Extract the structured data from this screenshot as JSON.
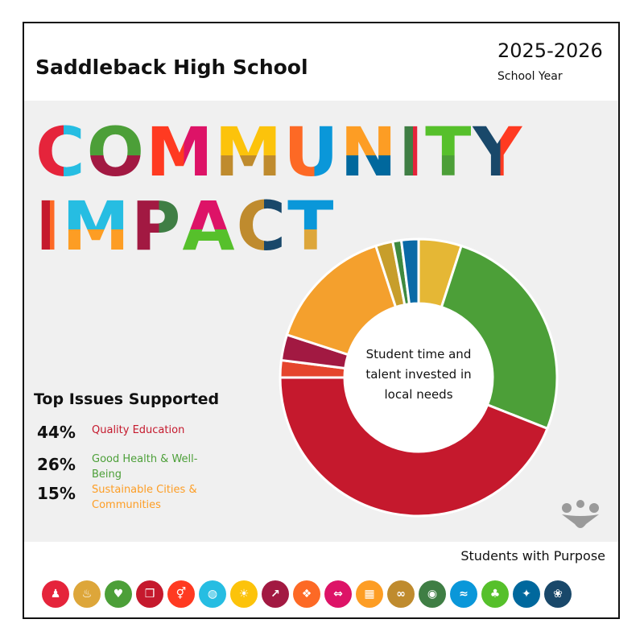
{
  "header": {
    "school_name": "Saddleback High School",
    "year": "2025-2026",
    "year_label": "School Year"
  },
  "title": {
    "line1": "COMMUNITY",
    "line2": "IMPACT"
  },
  "top_issues": {
    "heading": "Top Issues Supported",
    "items": [
      {
        "percent": "44%",
        "name": "Quality Education",
        "color": "#c5192d"
      },
      {
        "percent": "26%",
        "name": "Good Health & Well-Being",
        "color": "#4c9f38"
      },
      {
        "percent": "15%",
        "name": "Sustainable Cities & Communities",
        "color": "#fd9d24"
      }
    ]
  },
  "footer": {
    "tagline": "Students with Purpose"
  },
  "chart_data": {
    "type": "pie",
    "center_label": "Student time and talent invested in local needs",
    "slices": [
      {
        "value": 5,
        "color": "#e5b735"
      },
      {
        "value": 26,
        "color": "#4c9f38"
      },
      {
        "value": 44,
        "color": "#c5192d"
      },
      {
        "value": 2,
        "color": "#e5452d"
      },
      {
        "value": 3,
        "color": "#a21942"
      },
      {
        "value": 15,
        "color": "#f4a02d"
      },
      {
        "value": 2,
        "color": "#c79e2b"
      },
      {
        "value": 1,
        "color": "#3f8a3f"
      },
      {
        "value": 2,
        "color": "#0a6aa6"
      }
    ]
  },
  "sdg_icons": [
    {
      "name": "no-poverty-icon",
      "color": "#e5243b",
      "glyph": "♟"
    },
    {
      "name": "zero-hunger-icon",
      "color": "#dda63a",
      "glyph": "♨"
    },
    {
      "name": "good-health-icon",
      "color": "#4c9f38",
      "glyph": "♥"
    },
    {
      "name": "quality-education-icon",
      "color": "#c5192d",
      "glyph": "❒"
    },
    {
      "name": "gender-equality-icon",
      "color": "#ff3a21",
      "glyph": "⚥"
    },
    {
      "name": "clean-water-icon",
      "color": "#26bde2",
      "glyph": "◍"
    },
    {
      "name": "clean-energy-icon",
      "color": "#fcc30b",
      "glyph": "☀"
    },
    {
      "name": "decent-work-icon",
      "color": "#a21942",
      "glyph": "↗"
    },
    {
      "name": "industry-innovation-icon",
      "color": "#fd6925",
      "glyph": "❖"
    },
    {
      "name": "reduced-inequalities-icon",
      "color": "#dd1367",
      "glyph": "⇔"
    },
    {
      "name": "sustainable-cities-icon",
      "color": "#fd9d24",
      "glyph": "▦"
    },
    {
      "name": "responsible-consumption-icon",
      "color": "#bf8b2e",
      "glyph": "∞"
    },
    {
      "name": "climate-action-icon",
      "color": "#3f7e44",
      "glyph": "◉"
    },
    {
      "name": "life-below-water-icon",
      "color": "#0a97d9",
      "glyph": "≈"
    },
    {
      "name": "life-on-land-icon",
      "color": "#56c02b",
      "glyph": "♣"
    },
    {
      "name": "peace-justice-icon",
      "color": "#00689d",
      "glyph": "✦"
    },
    {
      "name": "partnerships-icon",
      "color": "#19486a",
      "glyph": "❀"
    }
  ]
}
